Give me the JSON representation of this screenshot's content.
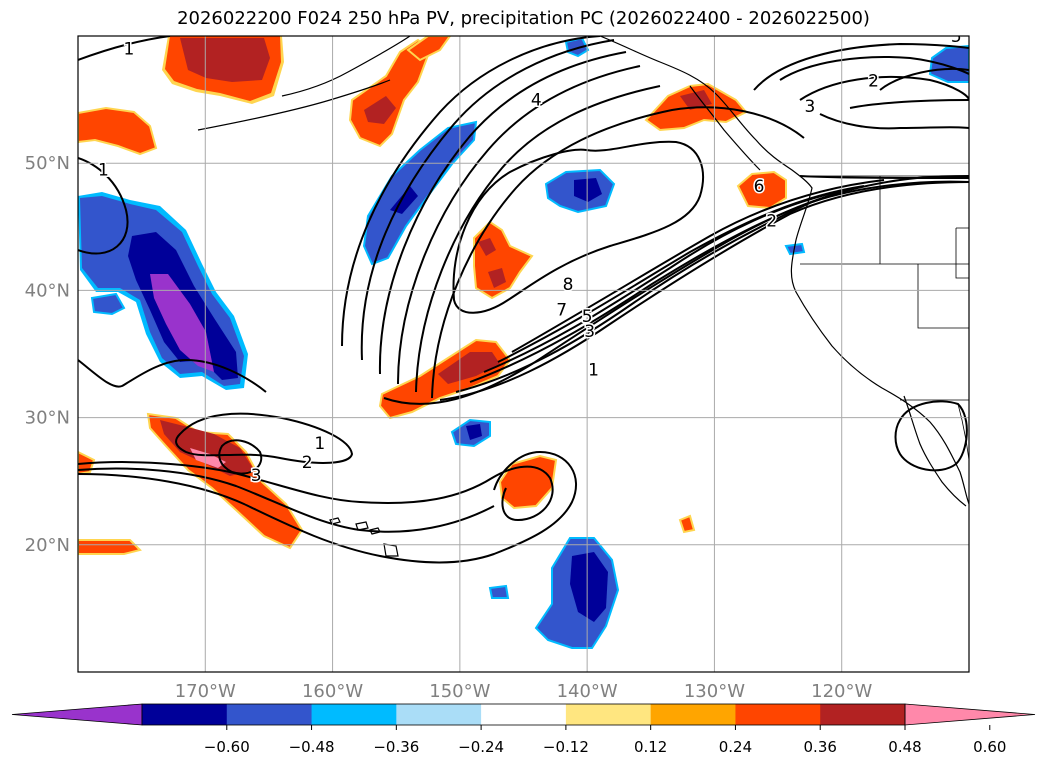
{
  "title": "2026022200 F024 250 hPa PV, precipitation PC (2026022400 - 2026022500)",
  "map": {
    "lon_range": [
      -180,
      -110
    ],
    "lat_range": [
      10,
      60
    ],
    "lon_ticks": [
      {
        "lon": -170,
        "label": "170°W"
      },
      {
        "lon": -160,
        "label": "160°W"
      },
      {
        "lon": -150,
        "label": "150°W"
      },
      {
        "lon": -140,
        "label": "140°W"
      },
      {
        "lon": -130,
        "label": "130°W"
      },
      {
        "lon": -120,
        "label": "120°W"
      }
    ],
    "lat_ticks": [
      {
        "lat": 20,
        "label": "20°N"
      },
      {
        "lat": 30,
        "label": "30°N"
      },
      {
        "lat": 40,
        "label": "40°N"
      },
      {
        "lat": 50,
        "label": "50°N"
      }
    ],
    "grid": true,
    "tick_label_color": "#808080"
  },
  "contour_labels": [
    {
      "text": "1",
      "lon": -176,
      "lat": 59
    },
    {
      "text": "1",
      "lon": -178,
      "lat": 49.5
    },
    {
      "text": "4",
      "lon": -144,
      "lat": 55
    },
    {
      "text": "8",
      "lon": -141.5,
      "lat": 40.5
    },
    {
      "text": "7",
      "lon": -142,
      "lat": 38.5
    },
    {
      "text": "5",
      "lon": -140,
      "lat": 38
    },
    {
      "text": "3",
      "lon": -139.8,
      "lat": 36.8
    },
    {
      "text": "1",
      "lon": -139.5,
      "lat": 33.8
    },
    {
      "text": "6",
      "lon": -126.5,
      "lat": 48.2
    },
    {
      "text": "2",
      "lon": -125.5,
      "lat": 45.5
    },
    {
      "text": "3",
      "lon": -122.5,
      "lat": 54.5
    },
    {
      "text": "2",
      "lon": -117.5,
      "lat": 56.5
    },
    {
      "text": "5",
      "lon": -111,
      "lat": 60
    },
    {
      "text": "1",
      "lon": -161,
      "lat": 28
    },
    {
      "text": "2",
      "lon": -162,
      "lat": 26.5
    },
    {
      "text": "3",
      "lon": -166,
      "lat": 25.5
    }
  ],
  "colorbar": {
    "colors": [
      "#9933cc",
      "#000099",
      "#3355cc",
      "#00bbff",
      "#aaddf7",
      "#ffffff",
      "#ffe680",
      "#ffa500",
      "#ff4500",
      "#b22222",
      "#ff88aa"
    ],
    "tick_labels": [
      "−0.60",
      "−0.48",
      "−0.36",
      "−0.24",
      "−0.12",
      "0.12",
      "0.24",
      "0.36",
      "0.48",
      "0.60"
    ]
  },
  "palette": {
    "purple": "#9933cc",
    "navy": "#000099",
    "blue": "#3355cc",
    "cyan": "#00bbff",
    "orange": "#ff4500",
    "darkred": "#b22222",
    "pink": "#ff88aa"
  }
}
